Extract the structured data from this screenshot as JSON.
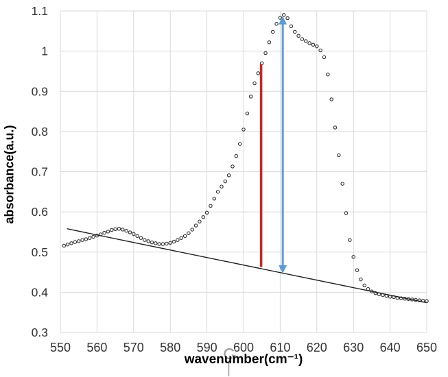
{
  "chart_data": {
    "type": "scatter",
    "title": "",
    "xlabel": "wavenumber(cm⁻¹)",
    "ylabel": "absorbance(a.u.)",
    "xlim": [
      550,
      650
    ],
    "ylim": [
      0.3,
      1.1
    ],
    "grid": true,
    "grid_color": "#d9d9d9",
    "tick_label_color": "#333333",
    "x_ticks": [
      550,
      560,
      570,
      580,
      590,
      600,
      610,
      620,
      630,
      640,
      650
    ],
    "y_ticks": [
      {
        "value": 1.1,
        "label": "1.1"
      },
      {
        "value": 1.0,
        "label": "1"
      },
      {
        "value": 0.9,
        "label": "0.9"
      },
      {
        "value": 0.8,
        "label": "0.8"
      },
      {
        "value": 0.7,
        "label": "0.7"
      },
      {
        "value": 0.6,
        "label": "0.6"
      },
      {
        "value": 0.5,
        "label": "0.5"
      },
      {
        "value": 0.4,
        "label": "0.4"
      },
      {
        "value": 0.3,
        "label": "0.3"
      }
    ],
    "series": [
      {
        "name": "absorbance-spectrum",
        "kind": "scatter",
        "marker": "open-circle",
        "marker_color": "#2f2f2f",
        "points": [
          [
            551,
            0.516
          ],
          [
            552,
            0.519
          ],
          [
            553,
            0.522
          ],
          [
            554,
            0.525
          ],
          [
            555,
            0.527
          ],
          [
            556,
            0.53
          ],
          [
            557,
            0.532
          ],
          [
            558,
            0.535
          ],
          [
            559,
            0.538
          ],
          [
            560,
            0.541
          ],
          [
            561,
            0.544
          ],
          [
            562,
            0.548
          ],
          [
            563,
            0.551
          ],
          [
            564,
            0.555
          ],
          [
            565,
            0.557
          ],
          [
            566,
            0.558
          ],
          [
            567,
            0.556
          ],
          [
            568,
            0.553
          ],
          [
            569,
            0.549
          ],
          [
            570,
            0.545
          ],
          [
            571,
            0.54
          ],
          [
            572,
            0.535
          ],
          [
            573,
            0.53
          ],
          [
            574,
            0.527
          ],
          [
            575,
            0.524
          ],
          [
            576,
            0.522
          ],
          [
            577,
            0.52
          ],
          [
            578,
            0.52
          ],
          [
            579,
            0.521
          ],
          [
            580,
            0.523
          ],
          [
            581,
            0.526
          ],
          [
            582,
            0.53
          ],
          [
            583,
            0.535
          ],
          [
            584,
            0.54
          ],
          [
            585,
            0.547
          ],
          [
            586,
            0.556
          ],
          [
            587,
            0.566
          ],
          [
            588,
            0.576
          ],
          [
            589,
            0.587
          ],
          [
            590,
            0.598
          ],
          [
            591,
            0.615
          ],
          [
            592,
            0.633
          ],
          [
            593,
            0.65
          ],
          [
            594,
            0.663
          ],
          [
            595,
            0.676
          ],
          [
            596,
            0.691
          ],
          [
            597,
            0.713
          ],
          [
            598,
            0.739
          ],
          [
            599,
            0.769
          ],
          [
            600,
            0.805
          ],
          [
            601,
            0.845
          ],
          [
            602,
            0.887
          ],
          [
            603,
            0.92
          ],
          [
            604,
            0.945
          ],
          [
            605,
            0.97
          ],
          [
            606,
            0.995
          ],
          [
            607,
            1.022
          ],
          [
            608,
            1.048
          ],
          [
            609,
            1.068
          ],
          [
            610,
            1.083
          ],
          [
            611,
            1.09
          ],
          [
            612,
            1.082
          ],
          [
            613,
            1.062
          ],
          [
            614,
            1.048
          ],
          [
            615,
            1.038
          ],
          [
            616,
            1.03
          ],
          [
            617,
            1.025
          ],
          [
            618,
            1.02
          ],
          [
            619,
            1.016
          ],
          [
            620,
            1.012
          ],
          [
            621,
            1.002
          ],
          [
            622,
            0.985
          ],
          [
            623,
            0.942
          ],
          [
            624,
            0.88
          ],
          [
            625,
            0.81
          ],
          [
            626,
            0.741
          ],
          [
            627,
            0.67
          ],
          [
            628,
            0.597
          ],
          [
            629,
            0.53
          ],
          [
            630,
            0.488
          ],
          [
            631,
            0.455
          ],
          [
            632,
            0.432
          ],
          [
            633,
            0.417
          ],
          [
            634,
            0.408
          ],
          [
            635,
            0.402
          ],
          [
            636,
            0.398
          ],
          [
            637,
            0.395
          ],
          [
            638,
            0.393
          ],
          [
            639,
            0.391
          ],
          [
            640,
            0.389
          ],
          [
            641,
            0.388
          ],
          [
            642,
            0.386
          ],
          [
            643,
            0.385
          ],
          [
            644,
            0.384
          ],
          [
            645,
            0.383
          ],
          [
            646,
            0.382
          ],
          [
            647,
            0.381
          ],
          [
            648,
            0.38
          ],
          [
            649,
            0.379
          ],
          [
            650,
            0.378
          ]
        ]
      },
      {
        "name": "baseline",
        "kind": "line",
        "color": "#1f1f1f",
        "width": 1.4,
        "points": [
          [
            551.8,
            0.558
          ],
          [
            650,
            0.374
          ]
        ]
      }
    ],
    "annotations": [
      {
        "name": "red-reference-line",
        "type": "vline",
        "color": "#cb2520",
        "width": 3.5,
        "x": 604.8,
        "y1": 0.463,
        "y2": 0.968
      },
      {
        "name": "blue-peak-height-arrow",
        "type": "double-arrow",
        "color": "#5b9bd5",
        "width": 3,
        "x": 610.7,
        "y1": 0.447,
        "y2": 1.087
      }
    ]
  },
  "overlay": {
    "cursor_icon": "rotate-cursor",
    "color": "#9d9d9d"
  }
}
